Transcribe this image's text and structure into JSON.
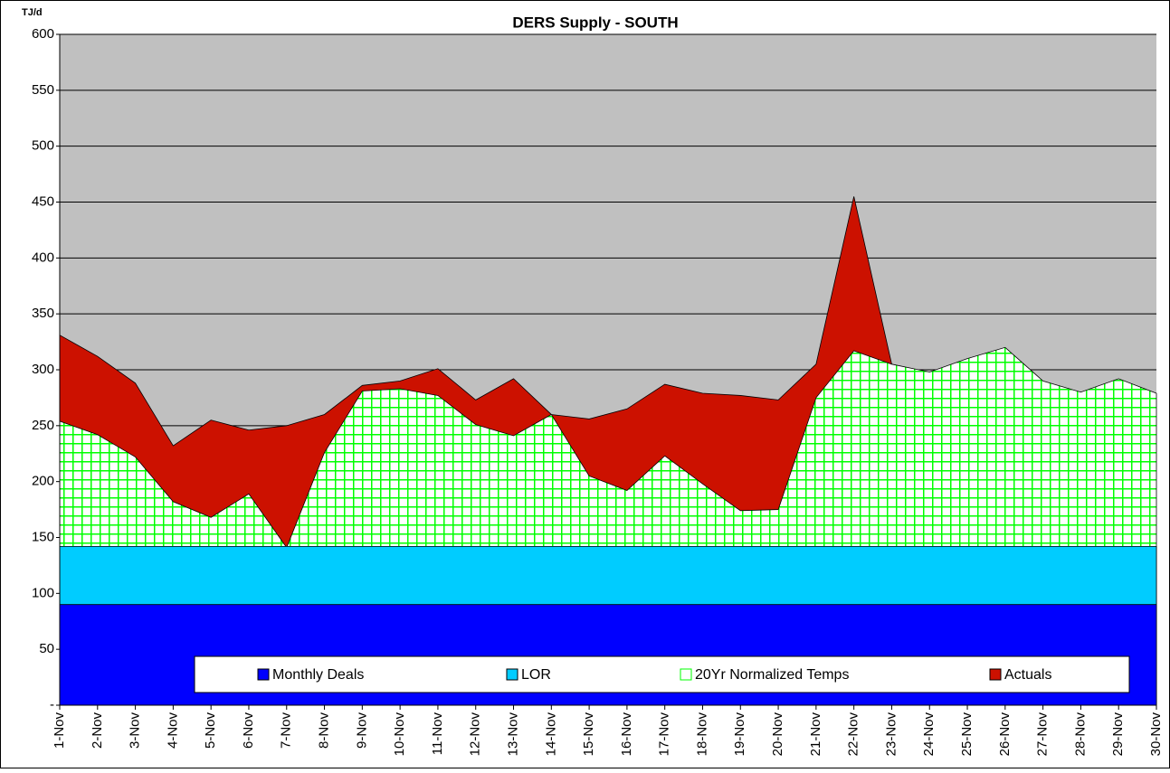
{
  "chart_data": {
    "type": "area",
    "title": "DERS Supply - SOUTH",
    "y_axis_label": "TJ/d",
    "categories": [
      "1-Nov",
      "2-Nov",
      "3-Nov",
      "4-Nov",
      "5-Nov",
      "6-Nov",
      "7-Nov",
      "8-Nov",
      "9-Nov",
      "10-Nov",
      "11-Nov",
      "12-Nov",
      "13-Nov",
      "14-Nov",
      "15-Nov",
      "16-Nov",
      "17-Nov",
      "18-Nov",
      "19-Nov",
      "20-Nov",
      "21-Nov",
      "22-Nov",
      "23-Nov",
      "24-Nov",
      "25-Nov",
      "26-Nov",
      "27-Nov",
      "28-Nov",
      "29-Nov",
      "30-Nov"
    ],
    "series": [
      {
        "name": "Monthly Deals",
        "color": "#0000ff",
        "values": [
          90,
          90,
          90,
          90,
          90,
          90,
          90,
          90,
          90,
          90,
          90,
          90,
          90,
          90,
          90,
          90,
          90,
          90,
          90,
          90,
          90,
          90,
          90,
          90,
          90,
          90,
          90,
          90,
          90,
          90
        ]
      },
      {
        "name": "LOR",
        "color": "#00ccff",
        "values": [
          142,
          142,
          142,
          142,
          142,
          142,
          142,
          142,
          142,
          142,
          142,
          142,
          142,
          142,
          142,
          142,
          142,
          142,
          142,
          142,
          142,
          142,
          142,
          142,
          142,
          142,
          142,
          142,
          142,
          142
        ]
      },
      {
        "name": "20Yr Normalized Temps",
        "color": "#00ff00",
        "pattern": "grid",
        "values": [
          254,
          242,
          222,
          182,
          168,
          189,
          141,
          226,
          281,
          283,
          277,
          251,
          241,
          260,
          205,
          192,
          223,
          198,
          174,
          175,
          275,
          317,
          305,
          298,
          310,
          320,
          290,
          280,
          292,
          279
        ]
      },
      {
        "name": "Actuals",
        "color": "#cc1100",
        "values": [
          331,
          312,
          288,
          232,
          255,
          246,
          250,
          260,
          286,
          290,
          301,
          273,
          292,
          260,
          256,
          265,
          287,
          279,
          277,
          273,
          305,
          455,
          305,
          null,
          null,
          null,
          null,
          null,
          null,
          null
        ]
      }
    ],
    "ylim": [
      0,
      600
    ],
    "yticks": [
      {
        "value": 0,
        "label": "-"
      },
      50,
      100,
      150,
      200,
      250,
      300,
      350,
      400,
      450,
      500,
      550,
      600
    ],
    "grid": true,
    "legend": "bottom",
    "plot_background": "#c0c0c0"
  }
}
